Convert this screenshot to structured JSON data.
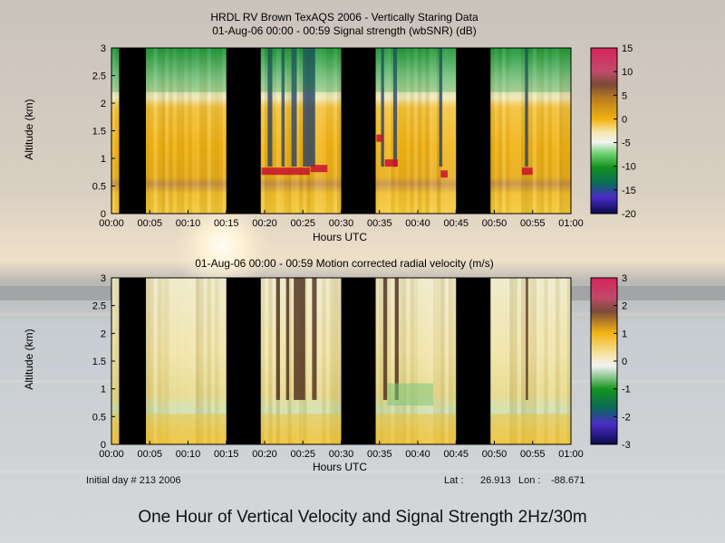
{
  "chart_data": [
    {
      "type": "heatmap",
      "title": "HRDL RV Brown TexAQS 2006 - Vertically Staring Data",
      "subtitle": "01-Aug-06 00:00 - 00:59 Signal strength (wbSNR) (dB)",
      "xlabel": "Hours UTC",
      "ylabel": "Altitude (km)",
      "xticks": [
        "00:00",
        "00:05",
        "00:10",
        "00:15",
        "00:20",
        "00:25",
        "00:30",
        "00:35",
        "00:40",
        "00:45",
        "00:50",
        "00:55",
        "01:00"
      ],
      "yticks": [
        "0",
        "0.5",
        "1",
        "1.5",
        "2",
        "2.5",
        "3"
      ],
      "ylim": [
        0,
        3
      ],
      "colorbar": {
        "ticks": [
          "15",
          "10",
          "5",
          "0",
          "-5",
          "-10",
          "-15",
          "-20"
        ],
        "range": [
          -20,
          15
        ]
      },
      "gaps_minutes": [
        [
          1,
          4.5
        ],
        [
          15,
          19.5
        ],
        [
          30,
          34.5
        ],
        [
          45,
          49.5
        ]
      ],
      "boundary_layer_top_km": 0.85
    },
    {
      "type": "heatmap",
      "title": "01-Aug-06 00:00 - 00:59 Motion corrected radial velocity (m/s)",
      "xlabel": "Hours UTC",
      "ylabel": "Altitude (km)",
      "xticks": [
        "00:00",
        "00:05",
        "00:10",
        "00:15",
        "00:20",
        "00:25",
        "00:30",
        "00:35",
        "00:40",
        "00:45",
        "00:50",
        "00:55",
        "01:00"
      ],
      "yticks": [
        "0",
        "0.5",
        "1",
        "1.5",
        "2",
        "2.5",
        "3"
      ],
      "ylim": [
        0,
        3
      ],
      "colorbar": {
        "ticks": [
          "3",
          "2",
          "1",
          "0",
          "-1",
          "-2",
          "-3"
        ],
        "range": [
          -3,
          3
        ]
      },
      "gaps_minutes": [
        [
          1,
          4.5
        ],
        [
          15,
          19.5
        ],
        [
          30,
          34.5
        ],
        [
          45,
          49.5
        ]
      ]
    }
  ],
  "footer": {
    "initial_day": "Initial day # 213  2006",
    "lat_label": "Lat :",
    "lat_value": "26.913",
    "lon_label": "Lon :",
    "lon_value": "-88.671"
  },
  "caption": "One Hour of Vertical Velocity and Signal Strength  2Hz/30m"
}
